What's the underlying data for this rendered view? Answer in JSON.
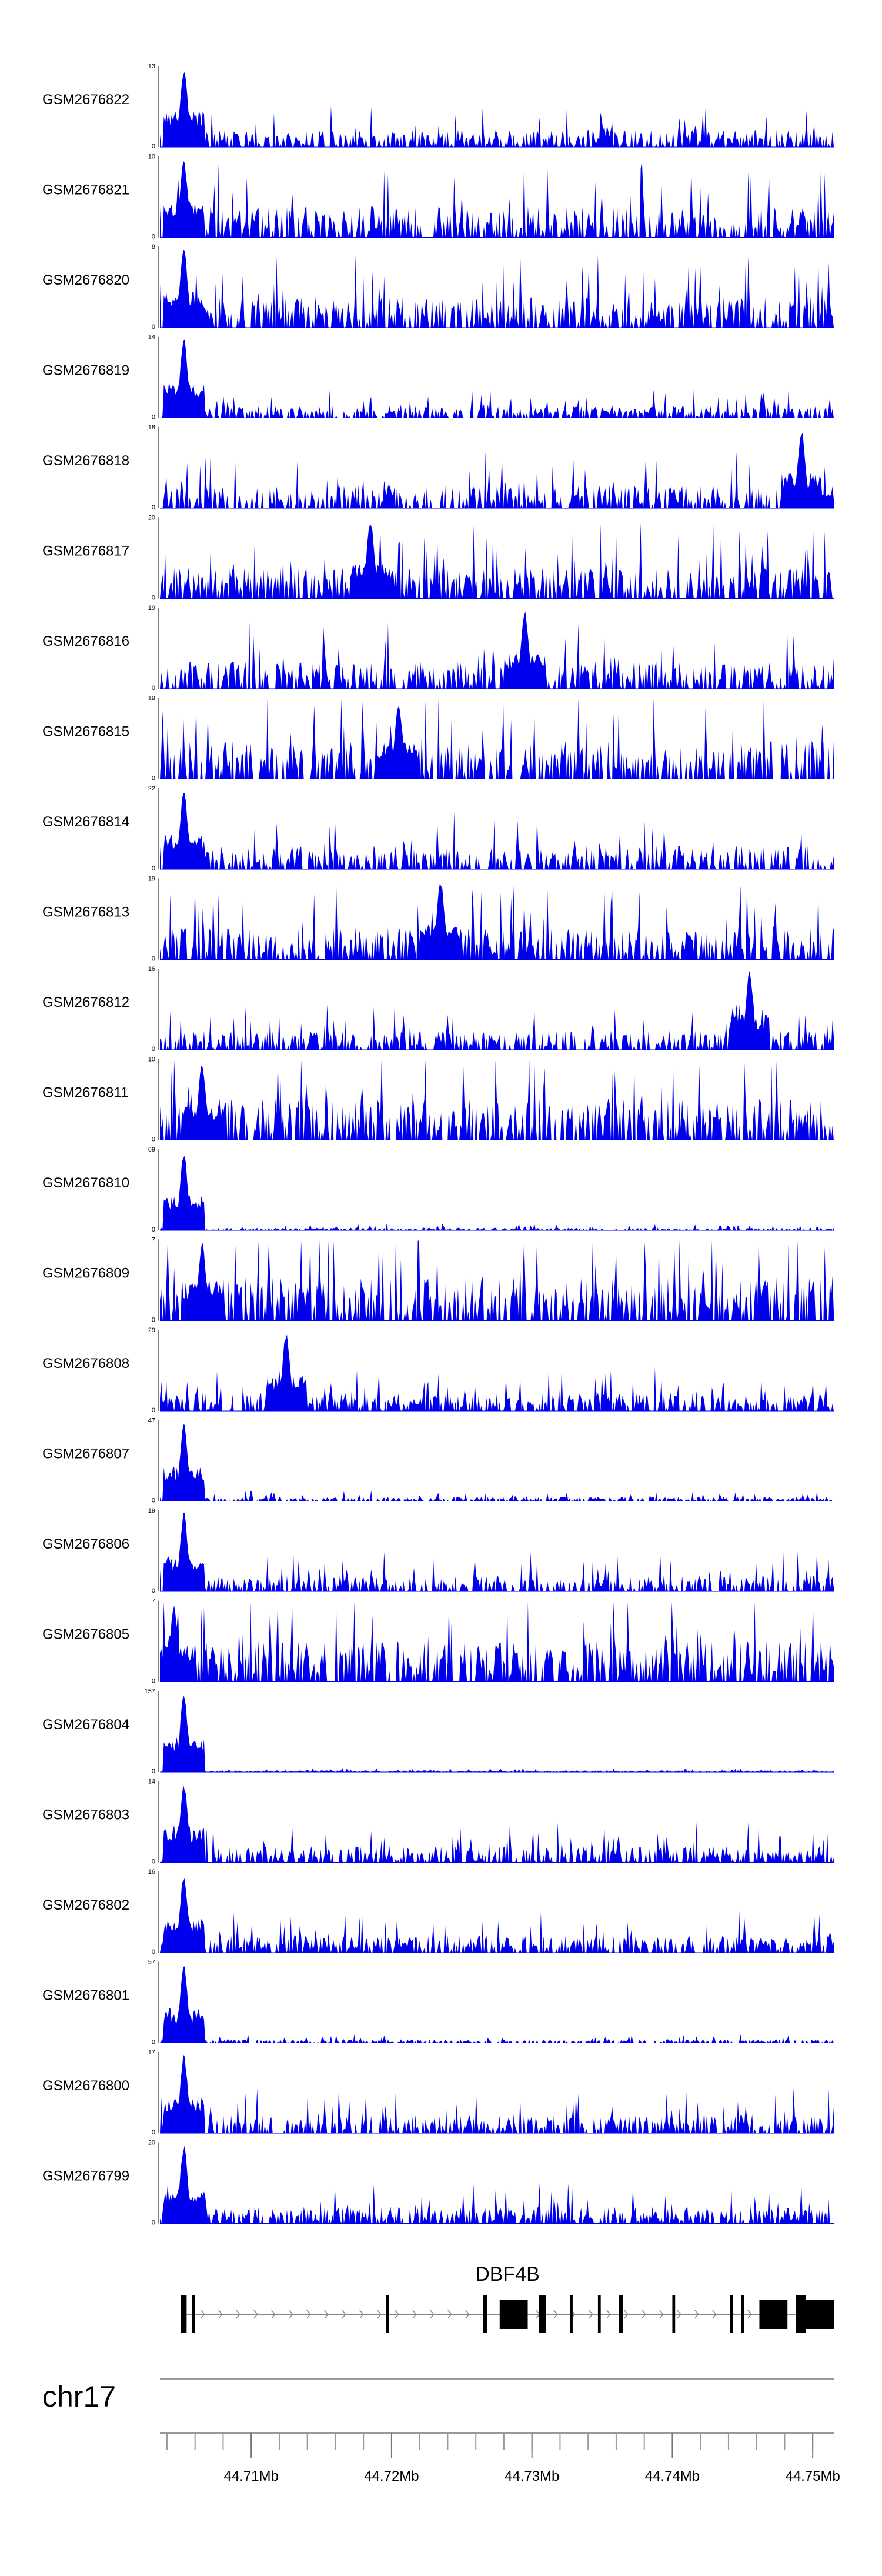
{
  "chart_data": {
    "type": "area",
    "chromosome": "chr17",
    "x_range_mb": [
      44.7035,
      44.7515
    ],
    "x_ticks_mb": [
      44.71,
      44.72,
      44.73,
      44.74,
      44.75
    ],
    "x_tick_labels": [
      "44.71Mb",
      "44.72Mb",
      "44.73Mb",
      "44.74Mb",
      "44.75Mb"
    ],
    "minor_tick_step_mb": 0.002,
    "series_color": "#0000ee",
    "tracks": [
      {
        "name": "GSM2676822",
        "ymax": 13,
        "ymax_label": "13",
        "ymin_label": "0",
        "peak_x_mb": 44.7052,
        "peak_value": 13,
        "background": 2.2
      },
      {
        "name": "GSM2676821",
        "ymax": 10,
        "ymax_label": "10",
        "ymin_label": "0",
        "peak_x_mb": 44.7052,
        "peak_value": 10,
        "background": 3.0
      },
      {
        "name": "GSM2676820",
        "ymax": 8,
        "ymax_label": "8",
        "ymin_label": "0",
        "peak_x_mb": 44.7052,
        "peak_value": 8,
        "background": 2.4
      },
      {
        "name": "GSM2676819",
        "ymax": 14,
        "ymax_label": "14",
        "ymin_label": "0",
        "peak_x_mb": 44.7052,
        "peak_value": 14,
        "background": 1.6
      },
      {
        "name": "GSM2676818",
        "ymax": 18,
        "ymax_label": "18",
        "ymin_label": "0",
        "peak_x_mb": 44.7492,
        "peak_value": 18,
        "background": 4.0
      },
      {
        "name": "GSM2676817",
        "ymax": 20,
        "ymax_label": "20",
        "ymin_label": "0",
        "peak_x_mb": 44.7185,
        "peak_value": 20,
        "background": 6.0
      },
      {
        "name": "GSM2676816",
        "ymax": 19,
        "ymax_label": "19",
        "ymin_label": "0",
        "peak_x_mb": 44.7295,
        "peak_value": 19,
        "background": 5.0
      },
      {
        "name": "GSM2676815",
        "ymax": 19,
        "ymax_label": "19",
        "ymin_label": "0",
        "peak_x_mb": 44.7205,
        "peak_value": 19,
        "background": 7.0
      },
      {
        "name": "GSM2676814",
        "ymax": 22,
        "ymax_label": "22",
        "ymin_label": "0",
        "peak_x_mb": 44.7052,
        "peak_value": 22,
        "background": 5.0
      },
      {
        "name": "GSM2676813",
        "ymax": 19,
        "ymax_label": "19",
        "ymin_label": "0",
        "peak_x_mb": 44.7235,
        "peak_value": 19,
        "background": 6.0
      },
      {
        "name": "GSM2676812",
        "ymax": 16,
        "ymax_label": "16",
        "ymin_label": "0",
        "peak_x_mb": 44.7455,
        "peak_value": 16,
        "background": 3.0
      },
      {
        "name": "GSM2676811",
        "ymax": 10,
        "ymax_label": "10",
        "ymin_label": "0",
        "peak_x_mb": 44.7065,
        "peak_value": 10,
        "background": 4.0
      },
      {
        "name": "GSM2676810",
        "ymax": 69,
        "ymax_label": "69",
        "ymin_label": "0",
        "peak_x_mb": 44.7052,
        "peak_value": 69,
        "background": 1.8
      },
      {
        "name": "GSM2676809",
        "ymax": 7,
        "ymax_label": "7",
        "ymin_label": "0",
        "peak_x_mb": 44.7065,
        "peak_value": 7,
        "background": 3.0
      },
      {
        "name": "GSM2676808",
        "ymax": 29,
        "ymax_label": "29",
        "ymin_label": "0",
        "peak_x_mb": 44.7125,
        "peak_value": 29,
        "background": 5.0
      },
      {
        "name": "GSM2676807",
        "ymax": 47,
        "ymax_label": "47",
        "ymin_label": "0",
        "peak_x_mb": 44.7052,
        "peak_value": 47,
        "background": 2.0
      },
      {
        "name": "GSM2676806",
        "ymax": 19,
        "ymax_label": "19",
        "ymin_label": "0",
        "peak_x_mb": 44.7052,
        "peak_value": 19,
        "background": 3.0
      },
      {
        "name": "GSM2676805",
        "ymax": 7,
        "ymax_label": "7",
        "ymin_label": "0",
        "peak_x_mb": 44.7045,
        "peak_value": 7,
        "background": 2.8
      },
      {
        "name": "GSM2676804",
        "ymax": 157,
        "ymax_label": "157",
        "ymin_label": "0",
        "peak_x_mb": 44.7052,
        "peak_value": 157,
        "background": 2.5
      },
      {
        "name": "GSM2676803",
        "ymax": 14,
        "ymax_label": "14",
        "ymin_label": "0",
        "peak_x_mb": 44.7052,
        "peak_value": 14,
        "background": 2.2
      },
      {
        "name": "GSM2676802",
        "ymax": 16,
        "ymax_label": "16",
        "ymin_label": "0",
        "peak_x_mb": 44.7052,
        "peak_value": 16,
        "background": 2.6
      },
      {
        "name": "GSM2676801",
        "ymax": 57,
        "ymax_label": "57",
        "ymin_label": "0",
        "peak_x_mb": 44.7052,
        "peak_value": 57,
        "background": 2.0
      },
      {
        "name": "GSM2676800",
        "ymax": 17,
        "ymax_label": "17",
        "ymin_label": "0",
        "peak_x_mb": 44.7052,
        "peak_value": 17,
        "background": 3.0
      },
      {
        "name": "GSM2676799",
        "ymax": 20,
        "ymax_label": "20",
        "ymin_label": "0",
        "peak_x_mb": 44.7052,
        "peak_value": 20,
        "background": 3.2
      }
    ],
    "gene_track": {
      "gene_name": "DBF4B",
      "strand": "+",
      "span_mb": [
        44.705,
        44.7515
      ],
      "exons_mb": [
        [
          44.705,
          44.7054
        ],
        [
          44.7058,
          44.706
        ],
        [
          44.7196,
          44.7198
        ],
        [
          44.7265,
          44.7268
        ],
        [
          44.7277,
          44.7297
        ],
        [
          44.7305,
          44.731
        ],
        [
          44.7327,
          44.7329
        ],
        [
          44.7347,
          44.7349
        ],
        [
          44.7362,
          44.7365
        ],
        [
          44.74,
          44.7402
        ],
        [
          44.7441,
          44.7443
        ],
        [
          44.7449,
          44.7451
        ],
        [
          44.7462,
          44.7482
        ],
        [
          44.7488,
          44.7495
        ],
        [
          44.7495,
          44.7515
        ]
      ]
    }
  }
}
